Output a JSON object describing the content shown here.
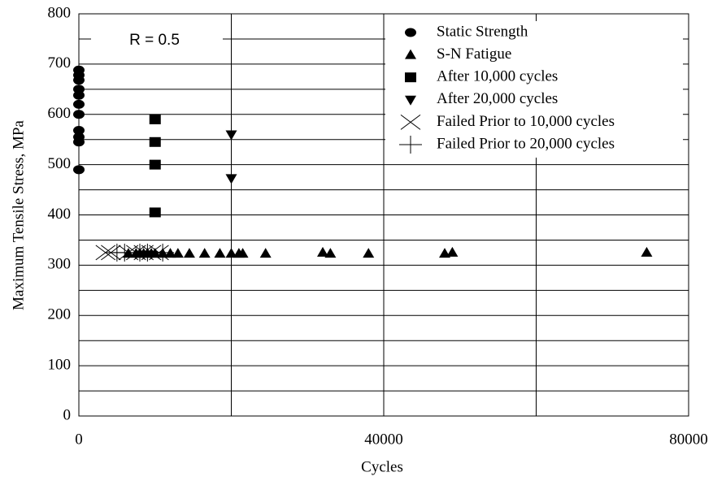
{
  "chart_data": {
    "type": "scatter",
    "xlabel": "Cycles",
    "ylabel": "Maximum Tensile Stress, MPa",
    "annotation": "R = 0.5",
    "xlim": [
      0,
      80000
    ],
    "xticks": [
      0,
      40000,
      80000
    ],
    "ylim": [
      0,
      800
    ],
    "yticks": [
      0,
      100,
      200,
      300,
      400,
      500,
      600,
      700,
      800
    ],
    "x_minor_grid": [
      20000,
      60000
    ],
    "y_minor_grid": [
      50,
      150,
      250,
      350,
      450,
      550,
      650,
      750
    ],
    "grid": true,
    "legend": "upper right",
    "series": [
      {
        "name": "Static Strength",
        "color": "#000000",
        "marker": "circle",
        "x": [
          0,
          0,
          0,
          0,
          0,
          0,
          0,
          0,
          0,
          0,
          0
        ],
        "values": [
          688,
          678,
          668,
          650,
          638,
          620,
          600,
          568,
          555,
          545,
          490
        ]
      },
      {
        "name": "S-N Fatigue",
        "color": "#000000",
        "marker": "triangle",
        "x": [
          6500,
          7500,
          8000,
          8500,
          9000,
          9500,
          10000,
          11000,
          12000,
          13000,
          14500,
          16500,
          18500,
          20000,
          21000,
          21500,
          24500,
          32000,
          33000,
          38000,
          48000,
          49000,
          74500
        ],
        "values": [
          323,
          323,
          323,
          323,
          323,
          323,
          323,
          323,
          323,
          323,
          323,
          323,
          323,
          323,
          323,
          323,
          323,
          325,
          323,
          323,
          323,
          325,
          325
        ]
      },
      {
        "name": "After 10,000 cycles",
        "color": "#000000",
        "marker": "square",
        "x": [
          10000,
          10000,
          10000,
          10000
        ],
        "values": [
          590,
          545,
          500,
          405
        ]
      },
      {
        "name": "After 20,000 cycles",
        "color": "#000000",
        "marker": "triangle-down",
        "x": [
          20000,
          20000
        ],
        "values": [
          560,
          473
        ]
      },
      {
        "name": "Failed Prior to 10,000 cycles",
        "color": "#000000",
        "marker": "x",
        "x": [
          3500,
          4200,
          6500,
          7500,
          8500,
          9500,
          10500
        ],
        "values": [
          325,
          325,
          325,
          325,
          325,
          325,
          325
        ]
      },
      {
        "name": "Failed Prior to 20,000 cycles",
        "color": "#000000",
        "marker": "plus",
        "x": [
          5000,
          6000,
          8000,
          9000,
          11000
        ],
        "values": [
          325,
          325,
          325,
          325,
          325
        ]
      }
    ]
  }
}
